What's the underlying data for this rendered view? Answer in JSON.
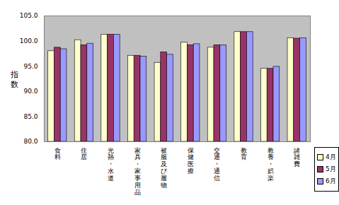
{
  "chart_data": {
    "type": "bar",
    "y_label": "指数",
    "categories": [
      "食料",
      "住居",
      "光熱・水道",
      "家具・家事用品",
      "被服及び履物",
      "保健医療",
      "交通・通信",
      "教育",
      "教養・娯楽",
      "諸雑費"
    ],
    "series": [
      {
        "name": "4月",
        "color": "#ffffcc",
        "values": [
          98.0,
          100.2,
          101.3,
          97.1,
          95.7,
          99.7,
          98.7,
          101.8,
          94.5,
          100.6
        ]
      },
      {
        "name": "5月",
        "color": "#993366",
        "values": [
          98.7,
          99.2,
          101.3,
          97.1,
          97.8,
          99.2,
          99.2,
          101.8,
          94.5,
          100.5
        ]
      },
      {
        "name": "6月",
        "color": "#9999ff",
        "values": [
          98.4,
          99.5,
          101.3,
          96.9,
          97.3,
          99.4,
          99.2,
          101.8,
          94.9,
          100.6
        ]
      }
    ],
    "ylim": [
      80,
      105
    ],
    "yticks": [
      {
        "value": 80,
        "label": "80.0"
      },
      {
        "value": 85,
        "label": "85.0"
      },
      {
        "value": 90,
        "label": "90.0"
      },
      {
        "value": 95,
        "label": "95.0"
      },
      {
        "value": 100,
        "label": "100.0"
      },
      {
        "value": 105,
        "label": "105.0"
      }
    ],
    "grid": false,
    "legend": "bottom-right"
  }
}
